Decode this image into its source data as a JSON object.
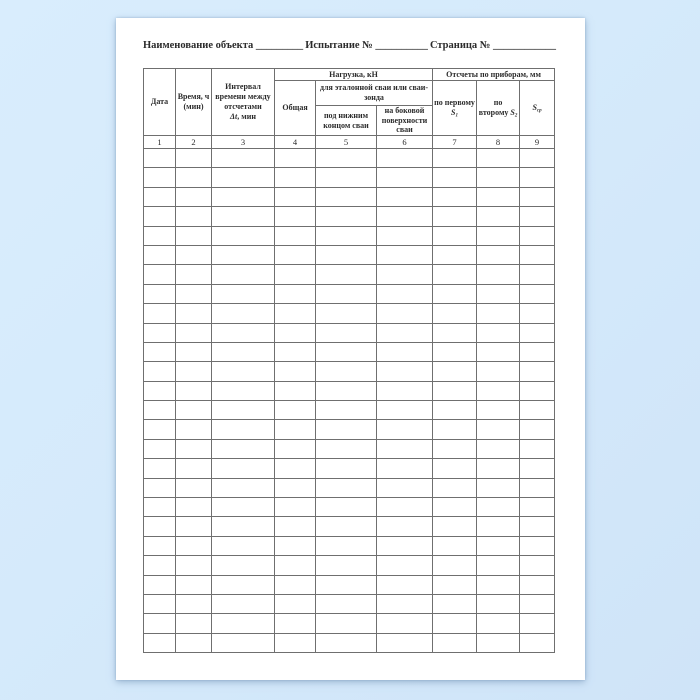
{
  "page": {
    "background_color": "#d7ecfc",
    "paper_color": "#ffffff",
    "border_color": "#6f6f6f"
  },
  "header": {
    "object_label": "Наименование объекта",
    "object_blank": "_________",
    "test_label": "Испытание №",
    "test_blank": "__________",
    "page_label": "Страница №",
    "page_blank": "____________"
  },
  "table": {
    "columns": {
      "date": "Дата",
      "time": "Время, ч (мин)",
      "interval_text": "Интервал времени между отсчетами",
      "interval_symbol": "Δt",
      "interval_suffix": ", мин",
      "load_group": "Нагрузка, кН",
      "total": "Общая",
      "etalon_group": "для эталонной сваи или сваи-зонда",
      "under_tip": "под нижним концом сваи",
      "side_surface": "на боковой поверхности сваи",
      "readings_group": "Отсчеты по приборам, мм",
      "first": {
        "label": "по первому",
        "symbol": "S",
        "sub": "1"
      },
      "second": {
        "label": "по второму",
        "symbol": "S",
        "sub": "2"
      },
      "mean": {
        "symbol": "S",
        "sub": "ср"
      }
    },
    "column_numbers": [
      "1",
      "2",
      "3",
      "4",
      "5",
      "6",
      "7",
      "8",
      "9"
    ],
    "body": {
      "rows": 26,
      "cols": 9
    }
  }
}
